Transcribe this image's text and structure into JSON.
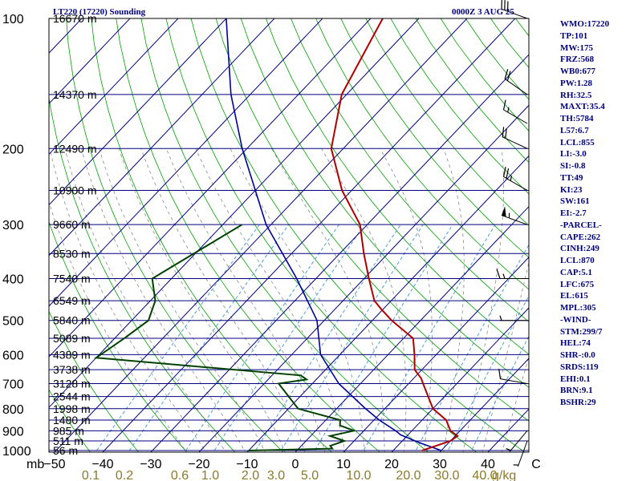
{
  "header": {
    "title": "LT220 (17220) Sounding",
    "time": "0000Z  3 AUG 25"
  },
  "indices": [
    "WMO:17220",
    "TP:101",
    "MW:175",
    "FRZ:568",
    "WB0:677",
    "PW:1.28",
    "RH:32.5",
    "MAXT:35.4",
    "TH:5784",
    "L57:6.7",
    "LCL:855",
    "LI:-3.0",
    "SI:-0.8",
    "TT:49",
    "KI:23",
    "SW:161",
    "EI:-2.7",
    "-PARCEL-",
    "CAPE:262",
    "CINH:249",
    "LCL:870",
    "CAP:5.1",
    "LFC:675",
    "EL:615",
    "MPL:305",
    "-WIND-",
    "STM:299/7",
    "HEL:74",
    "SHR-:0.0",
    "SRDS:119",
    "EHI:0.1",
    "BRN:9.1",
    "BSHR:29"
  ],
  "colors": {
    "frame": "#000000",
    "isobar": "#00007f",
    "isotherm": "#00007f",
    "dry_adiabat": "#00a000",
    "moist_adiabat": "#8a8a8a",
    "mixing_ratio": "#4a9fe0",
    "temperature": "#b00000",
    "dewpoint": "#004000",
    "parcel": "#00009a",
    "label_text": "#000000",
    "mixing_label": "#8b7a2a",
    "indices_text": "#00007f"
  },
  "chart_data": {
    "type": "line",
    "title": "LT220 (17220) Sounding",
    "x_axis_unit": "mb",
    "pressure_levels_mb": [
      100,
      200,
      300,
      400,
      500,
      600,
      700,
      800,
      900,
      1000
    ],
    "temperature_ticks_c": [
      -50,
      -40,
      -30,
      -20,
      -10,
      0,
      10,
      20,
      30,
      40,
      50
    ],
    "temperature_tick_labels": [
      "−50",
      "−40",
      "−30",
      "−20",
      "−10",
      "0",
      "10",
      "20",
      "30",
      "40",
      "C"
    ],
    "mixing_ratio_unit": "g/kg",
    "mixing_ratio_labels": [
      "0.1",
      "0.2",
      "0.6",
      "1.0",
      "2.0",
      "3.0",
      "5.0",
      "10.0",
      "20.0",
      "30.0",
      "40.0"
    ],
    "height_labels": [
      {
        "p": 100,
        "text": "16670 m"
      },
      {
        "p": 150,
        "text": "14370 m"
      },
      {
        "p": 200,
        "text": "12490 m"
      },
      {
        "p": 250,
        "text": "10900 m"
      },
      {
        "p": 300,
        "text": "9660 m"
      },
      {
        "p": 350,
        "text": "8530 m"
      },
      {
        "p": 400,
        "text": "7540 m"
      },
      {
        "p": 450,
        "text": "6549 m"
      },
      {
        "p": 500,
        "text": "5840 m"
      },
      {
        "p": 550,
        "text": "5089 m"
      },
      {
        "p": 600,
        "text": "4389 m"
      },
      {
        "p": 650,
        "text": "3738 m"
      },
      {
        "p": 700,
        "text": "3128 m"
      },
      {
        "p": 750,
        "text": "2544 m"
      },
      {
        "p": 800,
        "text": "1998 m"
      },
      {
        "p": 850,
        "text": "1480 m"
      },
      {
        "p": 900,
        "text": "985 m"
      },
      {
        "p": 950,
        "text": "511 m"
      },
      {
        "p": 1000,
        "text": "56 m"
      }
    ],
    "series": [
      {
        "name": "temperature",
        "points": [
          [
            1000,
            26.0
          ],
          [
            975,
            28.0
          ],
          [
            950,
            30.0
          ],
          [
            925,
            30.5
          ],
          [
            900,
            28.0
          ],
          [
            850,
            25.0
          ],
          [
            800,
            20.0
          ],
          [
            700,
            13.0
          ],
          [
            680,
            11.5
          ],
          [
            650,
            8.5
          ],
          [
            600,
            5.5
          ],
          [
            550,
            2.0
          ],
          [
            500,
            -6.0
          ],
          [
            470,
            -10.5
          ],
          [
            450,
            -13.5
          ],
          [
            400,
            -19.0
          ],
          [
            350,
            -25.0
          ],
          [
            300,
            -31.5
          ],
          [
            250,
            -42.0
          ],
          [
            200,
            -52.5
          ],
          [
            150,
            -61.0
          ],
          [
            100,
            -67.5
          ]
        ]
      },
      {
        "name": "dewpoint",
        "points": [
          [
            1000,
            -10.0
          ],
          [
            990,
            7.0
          ],
          [
            975,
            6.0
          ],
          [
            950,
            8.0
          ],
          [
            925,
            4.0
          ],
          [
            900,
            8.0
          ],
          [
            875,
            4.0
          ],
          [
            850,
            3.0
          ],
          [
            800,
            -8.0
          ],
          [
            700,
            -17.0
          ],
          [
            685,
            -12.0
          ],
          [
            670,
            -14.0
          ],
          [
            610,
            -60.0
          ],
          [
            550,
            -58.0
          ],
          [
            500,
            -56.5
          ],
          [
            450,
            -59.0
          ],
          [
            400,
            -64.0
          ],
          [
            300,
            -56.0
          ]
        ]
      },
      {
        "name": "parcel",
        "points": [
          [
            1000,
            30.0
          ],
          [
            960,
            24.0
          ],
          [
            920,
            18.5
          ],
          [
            900,
            16.6
          ],
          [
            850,
            11.1
          ],
          [
            800,
            6.0
          ],
          [
            700,
            -4.5
          ],
          [
            600,
            -14.0
          ],
          [
            500,
            -21.5
          ],
          [
            400,
            -34.0
          ],
          [
            300,
            -51.0
          ],
          [
            200,
            -71.0
          ],
          [
            150,
            -84.0
          ],
          [
            100,
            -100.0
          ]
        ]
      }
    ],
    "wind_barbs": [
      {
        "p": 100,
        "dir": 290,
        "spd": 30
      },
      {
        "p": 150,
        "dir": 305,
        "spd": 20
      },
      {
        "p": 175,
        "dir": 300,
        "spd": 15
      },
      {
        "p": 200,
        "dir": 295,
        "spd": 20
      },
      {
        "p": 250,
        "dir": 300,
        "spd": 25
      },
      {
        "p": 300,
        "dir": 290,
        "spd": 55
      },
      {
        "p": 400,
        "dir": 270,
        "spd": 15
      },
      {
        "p": 500,
        "dir": 270,
        "spd": 5
      },
      {
        "p": 700,
        "dir": 280,
        "spd": 10
      },
      {
        "p": 900,
        "dir": 220,
        "spd": 5
      },
      {
        "p": 950,
        "dir": 200,
        "spd": 5
      }
    ]
  }
}
